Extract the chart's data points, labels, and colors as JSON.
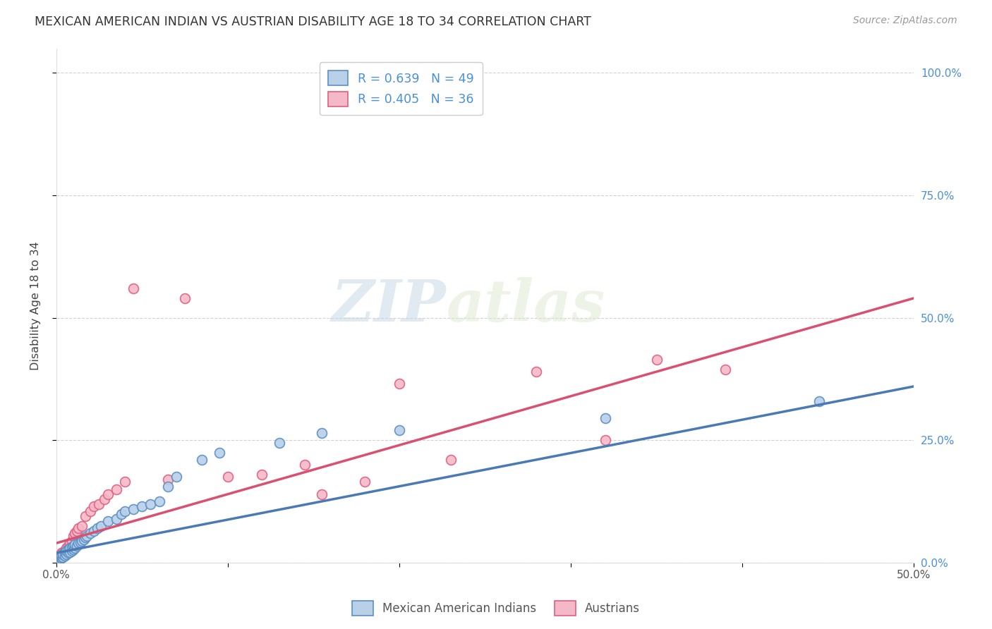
{
  "title": "MEXICAN AMERICAN INDIAN VS AUSTRIAN DISABILITY AGE 18 TO 34 CORRELATION CHART",
  "source": "Source: ZipAtlas.com",
  "ylabel": "Disability Age 18 to 34",
  "xlabel_ticks": [
    "0.0%",
    "",
    "",
    "",
    "",
    "50.0%"
  ],
  "ylabel_ticks_right": [
    "0.0%",
    "25.0%",
    "50.0%",
    "75.0%",
    "100.0%"
  ],
  "xlim": [
    0.0,
    0.5
  ],
  "ylim": [
    0.0,
    1.05
  ],
  "blue_R": 0.639,
  "blue_N": 49,
  "pink_R": 0.405,
  "pink_N": 36,
  "blue_color": "#b8d0e8",
  "pink_color": "#f5b8c8",
  "blue_edge_color": "#5b8ec4",
  "pink_edge_color": "#e06080",
  "blue_line_color": "#4a7ab5",
  "pink_line_color": "#d95070",
  "legend_color": "#4a90d9",
  "watermark_zip": "ZIP",
  "watermark_atlas": "atlas",
  "blue_x": [
    0.001,
    0.002,
    0.002,
    0.003,
    0.003,
    0.004,
    0.004,
    0.005,
    0.005,
    0.006,
    0.006,
    0.007,
    0.007,
    0.008,
    0.008,
    0.009,
    0.009,
    0.01,
    0.01,
    0.011,
    0.011,
    0.012,
    0.013,
    0.014,
    0.015,
    0.016,
    0.017,
    0.018,
    0.02,
    0.022,
    0.024,
    0.026,
    0.03,
    0.035,
    0.038,
    0.04,
    0.045,
    0.05,
    0.055,
    0.06,
    0.065,
    0.07,
    0.085,
    0.095,
    0.13,
    0.155,
    0.2,
    0.32,
    0.445
  ],
  "blue_y": [
    0.01,
    0.008,
    0.012,
    0.01,
    0.015,
    0.012,
    0.018,
    0.015,
    0.022,
    0.018,
    0.025,
    0.02,
    0.028,
    0.022,
    0.03,
    0.025,
    0.032,
    0.028,
    0.035,
    0.03,
    0.038,
    0.035,
    0.04,
    0.042,
    0.045,
    0.048,
    0.052,
    0.055,
    0.06,
    0.065,
    0.07,
    0.075,
    0.085,
    0.09,
    0.1,
    0.105,
    0.11,
    0.115,
    0.12,
    0.125,
    0.155,
    0.175,
    0.21,
    0.225,
    0.245,
    0.265,
    0.27,
    0.295,
    0.33
  ],
  "pink_x": [
    0.001,
    0.002,
    0.003,
    0.004,
    0.005,
    0.006,
    0.007,
    0.008,
    0.009,
    0.01,
    0.011,
    0.012,
    0.013,
    0.015,
    0.017,
    0.02,
    0.022,
    0.025,
    0.028,
    0.03,
    0.035,
    0.04,
    0.045,
    0.065,
    0.075,
    0.1,
    0.12,
    0.145,
    0.155,
    0.18,
    0.2,
    0.23,
    0.28,
    0.32,
    0.35,
    0.39
  ],
  "pink_y": [
    0.012,
    0.015,
    0.02,
    0.022,
    0.025,
    0.03,
    0.035,
    0.04,
    0.045,
    0.055,
    0.06,
    0.065,
    0.07,
    0.075,
    0.095,
    0.105,
    0.115,
    0.12,
    0.13,
    0.14,
    0.15,
    0.165,
    0.56,
    0.17,
    0.54,
    0.175,
    0.18,
    0.2,
    0.14,
    0.165,
    0.365,
    0.21,
    0.39,
    0.25,
    0.415,
    0.395
  ],
  "blue_trend_x": [
    0.0,
    0.5
  ],
  "blue_trend_y": [
    0.02,
    0.36
  ],
  "pink_trend_x": [
    0.0,
    0.5
  ],
  "pink_trend_y": [
    0.04,
    0.54
  ]
}
